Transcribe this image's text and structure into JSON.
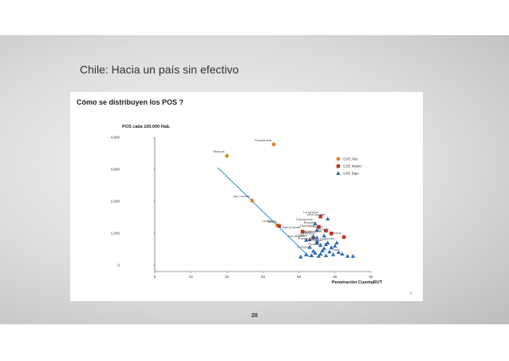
{
  "slide": {
    "title": "Chile: Hacia un país sin efectivo",
    "page_number": "28",
    "slide_corner_number": "6"
  },
  "panel": {
    "title": "Cómo se distribuyen los POS ?"
  },
  "colors": {
    "alto": "#d98a1e",
    "medio": "#c0392b",
    "bajo": "#2e6ab0",
    "trend": "#2b8fd0"
  },
  "chart_data": {
    "type": "scatter",
    "title": "POS cada 100.000 Hab.",
    "xlabel": "Penetración CuentaRUT",
    "ylabel": "",
    "xlim": [
      0,
      60
    ],
    "ylim": [
      -200,
      4000
    ],
    "x_ticks": [
      "0",
      "10",
      "20",
      "30",
      "40",
      "50",
      "60"
    ],
    "y_ticks": [
      {
        "value": 0,
        "label": "0"
      },
      {
        "value": 1000,
        "label": "1,000"
      },
      {
        "value": 2000,
        "label": "2,000"
      },
      {
        "value": 3000,
        "label": "3,000"
      },
      {
        "value": 4000,
        "label": "4,000"
      }
    ],
    "legend_position": "right",
    "trendline": {
      "x": [
        17.5,
        43
      ],
      "y": [
        3050,
        250
      ]
    },
    "series": [
      {
        "name": "GSE Alto",
        "marker": "circle",
        "points": [
          {
            "x": 33,
            "y": 3780,
            "label": "Providencia"
          },
          {
            "x": 20,
            "y": 3420,
            "label": "Vitacura"
          },
          {
            "x": 27,
            "y": 2020,
            "label": "Las Condes"
          },
          {
            "x": 34,
            "y": 1250,
            "label": "La Reina"
          }
        ]
      },
      {
        "name": "GSE Medio",
        "marker": "square",
        "points": [
          {
            "x": 46,
            "y": 1520,
            "label": "La Serena"
          },
          {
            "x": 34.5,
            "y": 1230,
            "label": "Ñuñoa"
          },
          {
            "x": 45.5,
            "y": 1200,
            "label": "Recoleta"
          },
          {
            "x": 47.5,
            "y": 1080,
            "label": "Iquique"
          },
          {
            "x": 41,
            "y": 1050,
            "label": "Puerto Montt"
          },
          {
            "x": 49,
            "y": 990,
            "label": "Temuco"
          },
          {
            "x": 52.5,
            "y": 880,
            "label": "Osorno"
          },
          {
            "x": 44,
            "y": 860,
            "label": ""
          }
        ]
      },
      {
        "name": "GSE Bajo",
        "marker": "triangle",
        "points": [
          {
            "x": 44.5,
            "y": 1300,
            "label": "Concepción"
          },
          {
            "x": 48,
            "y": 1450,
            "label": "Viña Del Mar"
          },
          {
            "x": 45,
            "y": 1100,
            "label": "Rancagua"
          },
          {
            "x": 47,
            "y": 920,
            "label": "Antofagasta"
          },
          {
            "x": 45,
            "y": 860,
            "label": "La Florida"
          },
          {
            "x": 43,
            "y": 800,
            "label": "Maipú"
          },
          {
            "x": 44,
            "y": 900,
            "label": "Talca"
          },
          {
            "x": 42,
            "y": 780,
            "label": "San Miguel"
          },
          {
            "x": 45,
            "y": 700,
            "label": "Puente Alto"
          },
          {
            "x": 47.5,
            "y": 650,
            "label": "San Joaquín"
          },
          {
            "x": 47,
            "y": 520,
            "label": "Pudahuel"
          },
          {
            "x": 52,
            "y": 350,
            "label": "Putre"
          },
          {
            "x": 50.5,
            "y": 700,
            "label": "Coquimbo"
          },
          {
            "x": 44,
            "y": 440,
            "label": "Lo Espejo"
          },
          {
            "x": 40.5,
            "y": 260,
            "label": ""
          },
          {
            "x": 42,
            "y": 330,
            "label": ""
          },
          {
            "x": 43.5,
            "y": 300,
            "label": ""
          },
          {
            "x": 44.5,
            "y": 380,
            "label": ""
          },
          {
            "x": 45.5,
            "y": 280,
            "label": ""
          },
          {
            "x": 46,
            "y": 350,
            "label": ""
          },
          {
            "x": 46.5,
            "y": 450,
            "label": ""
          },
          {
            "x": 47.5,
            "y": 300,
            "label": ""
          },
          {
            "x": 48.5,
            "y": 420,
            "label": ""
          },
          {
            "x": 49,
            "y": 550,
            "label": ""
          },
          {
            "x": 49.5,
            "y": 330,
            "label": ""
          },
          {
            "x": 50,
            "y": 600,
            "label": ""
          },
          {
            "x": 51,
            "y": 400,
            "label": ""
          },
          {
            "x": 53.5,
            "y": 280,
            "label": ""
          },
          {
            "x": 55,
            "y": 280,
            "label": ""
          },
          {
            "x": 45,
            "y": 750,
            "label": ""
          },
          {
            "x": 46,
            "y": 620,
            "label": ""
          },
          {
            "x": 48,
            "y": 700,
            "label": ""
          },
          {
            "x": 43,
            "y": 560,
            "label": ""
          }
        ]
      }
    ]
  }
}
